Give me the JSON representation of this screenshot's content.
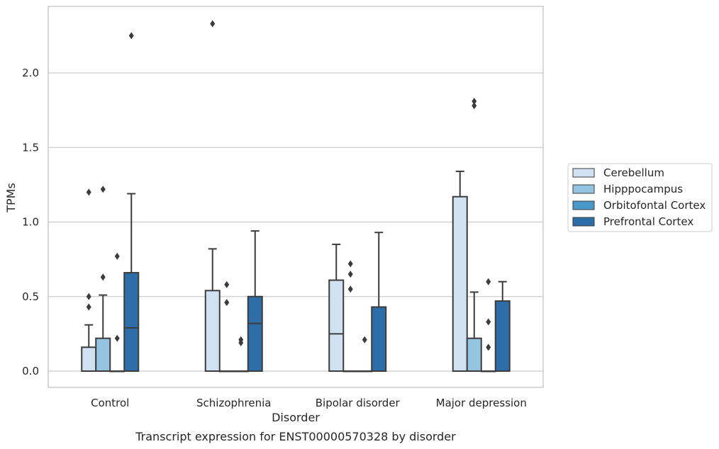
{
  "chart_data": {
    "type": "box",
    "caption": "Transcript expression for ENST00000570328 by disorder",
    "xlabel": "Disorder",
    "ylabel": "TPMs",
    "ylim": [
      -0.11,
      2.45
    ],
    "yticks": [
      0.0,
      0.5,
      1.0,
      1.5,
      2.0
    ],
    "ytick_labels": [
      "0.0",
      "0.5",
      "1.0",
      "1.5",
      "2.0"
    ],
    "grid": "horizontal",
    "legend_position": "right",
    "categories": [
      "Control",
      "Schizophrenia",
      "Bipolar disorder",
      "Major depression"
    ],
    "series": [
      {
        "name": "Cerebellum",
        "color": "#d0e1f2",
        "boxes": [
          {
            "q1": 0.0,
            "median": 0.0,
            "q3": 0.16,
            "whisker_low": 0.0,
            "whisker_high": 0.31,
            "outliers": [
              0.43,
              0.5,
              1.2
            ]
          },
          {
            "q1": 0.0,
            "median": 0.0,
            "q3": 0.54,
            "whisker_low": 0.0,
            "whisker_high": 0.82,
            "outliers": [
              2.33
            ]
          },
          {
            "q1": 0.0,
            "median": 0.25,
            "q3": 0.61,
            "whisker_low": 0.0,
            "whisker_high": 0.85,
            "outliers": []
          },
          {
            "q1": 0.0,
            "median": 0.0,
            "q3": 1.17,
            "whisker_low": 0.0,
            "whisker_high": 1.34,
            "outliers": []
          }
        ]
      },
      {
        "name": "Hipppocampus",
        "color": "#94c4df",
        "boxes": [
          {
            "q1": 0.0,
            "median": 0.0,
            "q3": 0.22,
            "whisker_low": 0.0,
            "whisker_high": 0.51,
            "outliers": [
              0.63,
              1.22
            ]
          },
          {
            "q1": 0.0,
            "median": 0.0,
            "q3": 0.0,
            "whisker_low": 0.0,
            "whisker_high": 0.0,
            "outliers": [
              0.46,
              0.58
            ]
          },
          {
            "q1": 0.0,
            "median": 0.0,
            "q3": 0.0,
            "whisker_low": 0.0,
            "whisker_high": 0.0,
            "outliers": [
              0.55,
              0.65,
              0.72
            ]
          },
          {
            "q1": 0.0,
            "median": 0.0,
            "q3": 0.22,
            "whisker_low": 0.0,
            "whisker_high": 0.53,
            "outliers": [
              1.78,
              1.81
            ]
          }
        ]
      },
      {
        "name": "Orbitofontal Cortex",
        "color": "#4a98c9",
        "boxes": [
          {
            "q1": 0.0,
            "median": 0.0,
            "q3": 0.0,
            "whisker_low": 0.0,
            "whisker_high": 0.0,
            "outliers": [
              0.22,
              0.77
            ]
          },
          {
            "q1": 0.0,
            "median": 0.0,
            "q3": 0.0,
            "whisker_low": 0.0,
            "whisker_high": 0.0,
            "outliers": [
              0.19,
              0.21
            ]
          },
          {
            "q1": 0.0,
            "median": 0.0,
            "q3": 0.0,
            "whisker_low": 0.0,
            "whisker_high": 0.0,
            "outliers": [
              0.21
            ]
          },
          {
            "q1": 0.0,
            "median": 0.0,
            "q3": 0.0,
            "whisker_low": 0.0,
            "whisker_high": 0.0,
            "outliers": [
              0.16,
              0.33,
              0.6
            ]
          }
        ]
      },
      {
        "name": "Prefrontal Cortex",
        "color": "#2d6ea9",
        "boxes": [
          {
            "q1": 0.0,
            "median": 0.29,
            "q3": 0.66,
            "whisker_low": 0.0,
            "whisker_high": 1.19,
            "outliers": [
              2.25
            ]
          },
          {
            "q1": 0.0,
            "median": 0.32,
            "q3": 0.5,
            "whisker_low": 0.0,
            "whisker_high": 0.94,
            "outliers": []
          },
          {
            "q1": 0.0,
            "median": 0.0,
            "q3": 0.43,
            "whisker_low": 0.0,
            "whisker_high": 0.93,
            "outliers": []
          },
          {
            "q1": 0.0,
            "median": 0.0,
            "q3": 0.47,
            "whisker_low": 0.0,
            "whisker_high": 0.6,
            "outliers": []
          }
        ]
      }
    ]
  },
  "colors": {
    "frame": "#cccccc",
    "grid": "#cccccc",
    "box_line": "#3c3c3c",
    "background": "#ffffff"
  }
}
